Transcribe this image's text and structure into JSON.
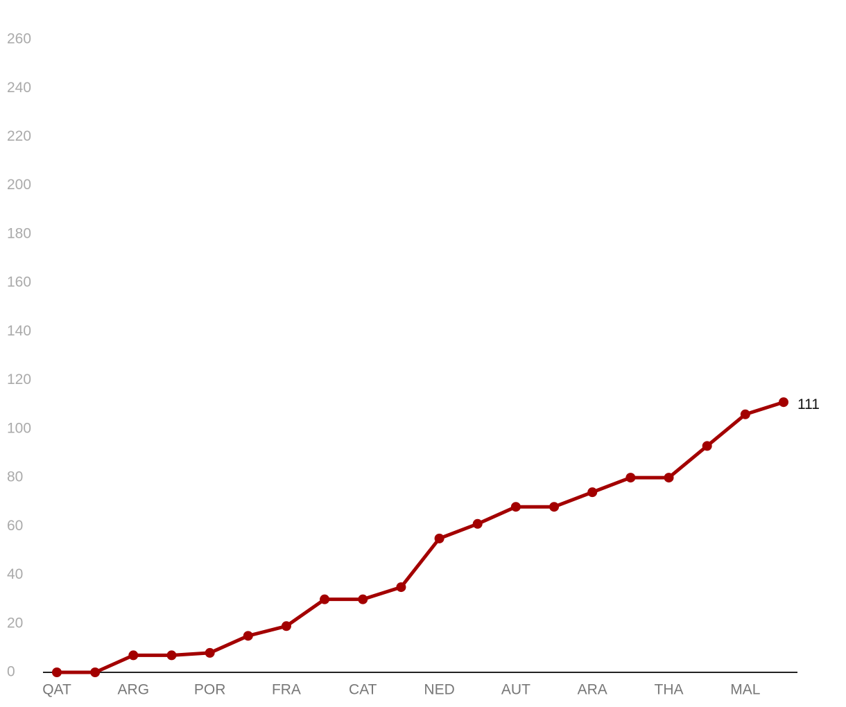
{
  "chart_data": {
    "type": "line",
    "categories": [
      "QAT",
      null,
      "ARG",
      null,
      "POR",
      null,
      "FRA",
      null,
      "CAT",
      null,
      "NED",
      null,
      "AUT",
      null,
      "ARA",
      null,
      "THA",
      null,
      "MAL",
      null
    ],
    "series": [
      {
        "color": "#a30000",
        "values": [
          0,
          0,
          7,
          7,
          8,
          15,
          19,
          30,
          30,
          35,
          55,
          61,
          68,
          68,
          74,
          80,
          80,
          93,
          106,
          111
        ]
      }
    ],
    "ylim": [
      0,
      260
    ],
    "yticks": [
      0,
      20,
      40,
      60,
      80,
      100,
      120,
      140,
      160,
      180,
      200,
      220,
      240,
      260
    ],
    "grid": false
  }
}
